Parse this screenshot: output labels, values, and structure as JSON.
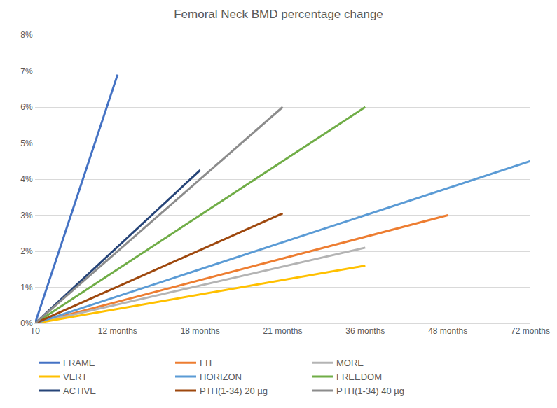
{
  "chart_data": {
    "type": "line",
    "title": "Femoral Neck BMD percentage change",
    "categories": [
      "T0",
      "12 months",
      "18 months",
      "21 months",
      "36 months",
      "48 months",
      "72 months"
    ],
    "series": [
      {
        "name": "FRAME",
        "color": "#4472c4",
        "values": [
          0,
          6.9,
          null,
          null,
          null,
          null,
          null
        ]
      },
      {
        "name": "FIT",
        "color": "#ed7d31",
        "values": [
          0,
          null,
          null,
          null,
          null,
          3.0,
          null
        ]
      },
      {
        "name": "MORE",
        "color": "#b4b4b4",
        "values": [
          0,
          null,
          null,
          null,
          2.1,
          null,
          null
        ]
      },
      {
        "name": "VERT",
        "color": "#ffc000",
        "values": [
          0,
          null,
          null,
          null,
          1.6,
          null,
          null
        ]
      },
      {
        "name": "HORIZON",
        "color": "#5b9bd5",
        "values": [
          0,
          null,
          null,
          null,
          null,
          null,
          4.5
        ]
      },
      {
        "name": "FREEDOM",
        "color": "#70ad47",
        "values": [
          0,
          null,
          null,
          null,
          6.0,
          null,
          null
        ]
      },
      {
        "name": "ACTIVE",
        "color": "#264478",
        "values": [
          0,
          null,
          4.25,
          null,
          null,
          null,
          null
        ]
      },
      {
        "name": "PTH(1-34) 20 µg",
        "color": "#9e480e",
        "values": [
          0,
          null,
          null,
          3.05,
          null,
          null,
          null
        ]
      },
      {
        "name": "PTH(1-34) 40 µg",
        "color": "#8c8c8c",
        "values": [
          0,
          null,
          null,
          6.0,
          null,
          null,
          null
        ]
      }
    ],
    "ylim": [
      0,
      8
    ],
    "yticks": [
      {
        "value": 0,
        "label": "0%"
      },
      {
        "value": 1,
        "label": "1%"
      },
      {
        "value": 2,
        "label": "2%"
      },
      {
        "value": 3,
        "label": "3%"
      },
      {
        "value": 4,
        "label": "4%"
      },
      {
        "value": 5,
        "label": "5%"
      },
      {
        "value": 6,
        "label": "6%"
      },
      {
        "value": 7,
        "label": "7%"
      },
      {
        "value": 8,
        "label": "8%"
      }
    ],
    "grid": true,
    "legend": "bottom"
  }
}
